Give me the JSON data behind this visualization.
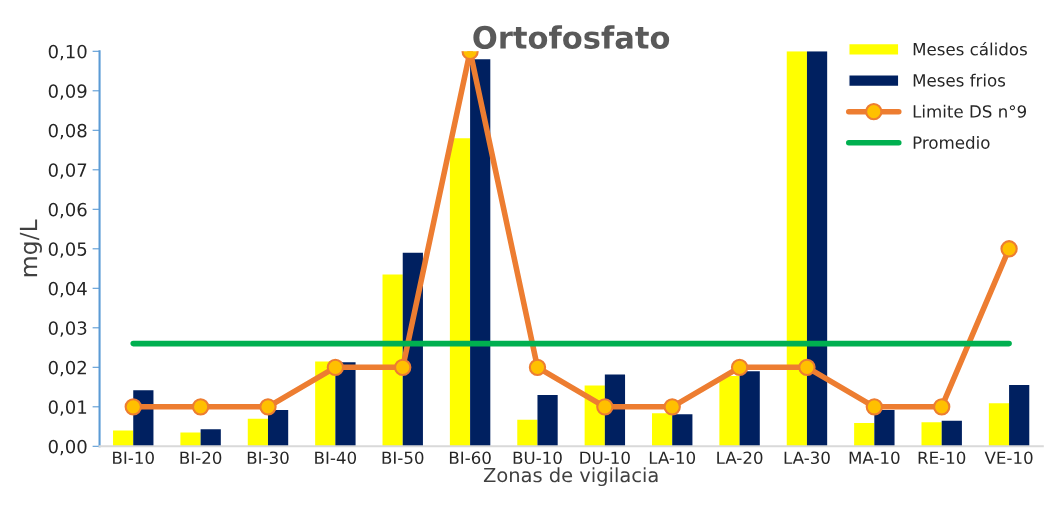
{
  "chart_data": {
    "type": "bar",
    "title": "Ortofosfato",
    "xlabel": "Zonas de vigilacia",
    "ylabel": "mg/L",
    "categories": [
      "BI-10",
      "BI-20",
      "BI-30",
      "BI-40",
      "BI-50",
      "BI-60",
      "BU-10",
      "DU-10",
      "LA-10",
      "LA-20",
      "LA-30",
      "MA-10",
      "RE-10",
      "VE-10"
    ],
    "series": [
      {
        "name": "Meses cálidos",
        "color": "#ffff00",
        "values": [
          0.004,
          0.0035,
          0.007,
          0.0215,
          0.0435,
          0.078,
          0.0067,
          0.0154,
          0.0084,
          0.0178,
          0.1,
          0.0059,
          0.0061,
          0.0109
        ]
      },
      {
        "name": "Meses frios",
        "color": "#002060",
        "values": [
          0.0142,
          0.0043,
          0.0092,
          0.0213,
          0.049,
          0.098,
          0.013,
          0.0182,
          0.0081,
          0.019,
          0.1,
          0.0092,
          0.0065,
          0.0155
        ]
      },
      {
        "name": "Limite DS n°9",
        "type": "line",
        "marker": "circle",
        "color": "#ed7d31",
        "values": [
          0.01,
          0.01,
          0.01,
          0.02,
          0.02,
          0.1,
          0.02,
          0.01,
          0.01,
          0.02,
          0.02,
          0.01,
          0.01,
          0.05
        ]
      },
      {
        "name": "Promedio",
        "type": "line",
        "marker": "none",
        "color": "#00b050",
        "values": [
          0.026,
          0.026,
          0.026,
          0.026,
          0.026,
          0.026,
          0.026,
          0.026,
          0.026,
          0.026,
          0.026,
          0.026,
          0.026,
          0.026
        ]
      }
    ],
    "ylim": [
      0,
      0.1
    ],
    "yticks": [
      {
        "value": 0,
        "label": "0,00"
      },
      {
        "value": 0.01,
        "label": "0,01"
      },
      {
        "value": 0.02,
        "label": "0,02"
      },
      {
        "value": 0.03,
        "label": "0,03"
      },
      {
        "value": 0.04,
        "label": "0,04"
      },
      {
        "value": 0.05,
        "label": "0,05"
      },
      {
        "value": 0.06,
        "label": "0,06"
      },
      {
        "value": 0.07,
        "label": "0,07"
      },
      {
        "value": 0.08,
        "label": "0,08"
      },
      {
        "value": 0.09,
        "label": "0,09"
      },
      {
        "value": 0.1,
        "label": "0,10"
      }
    ],
    "grid": false,
    "legend": "top right"
  }
}
